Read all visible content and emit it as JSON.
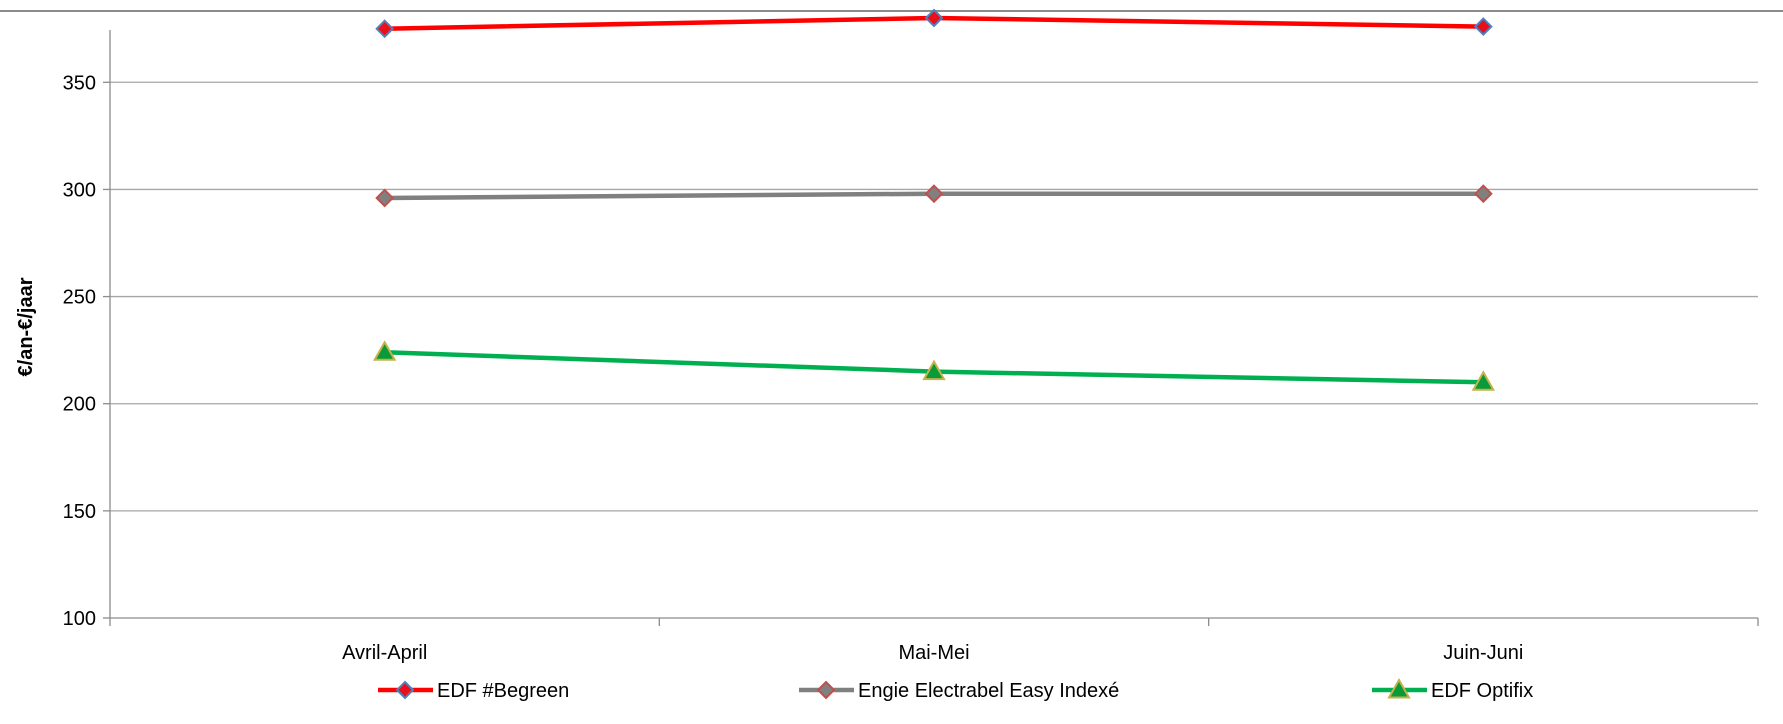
{
  "chart_data": {
    "type": "line",
    "categories": [
      "Avril-April",
      "Mai-Mei",
      "Juin-Juni"
    ],
    "ylabel": "€/an-€/jaar",
    "xlabel": "",
    "ylim": [
      100,
      380
    ],
    "yticks": [
      100,
      150,
      200,
      250,
      300,
      350
    ],
    "grid": true,
    "legend_position": "bottom",
    "series": [
      {
        "name": "EDF #Begreen",
        "values": [
          375,
          380,
          376
        ],
        "color": "#ff0000",
        "marker": "diamond",
        "marker_fill": "#e8101a",
        "marker_stroke": "#4f81bd"
      },
      {
        "name": "Engie Electrabel Easy Indexé",
        "values": [
          296,
          298,
          298
        ],
        "color": "#808080",
        "marker": "diamond",
        "marker_fill": "#808080",
        "marker_stroke": "#c0504d"
      },
      {
        "name": "EDF Optifix",
        "values": [
          224,
          215,
          210
        ],
        "color": "#00b050",
        "marker": "triangle",
        "marker_fill": "#0a9a3a",
        "marker_stroke": "#c5b34a"
      }
    ]
  }
}
